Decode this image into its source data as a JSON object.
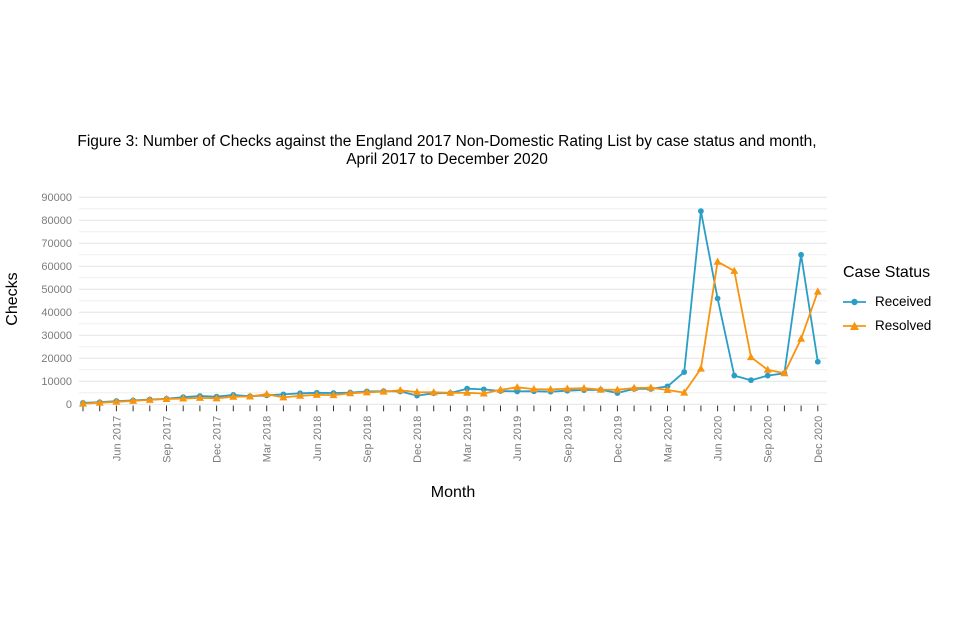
{
  "figure": {
    "title_line1": "Figure 3: Number of Checks against the England 2017 Non-Domestic Rating List by case status and month,",
    "title_line2": "April 2017 to December 2020"
  },
  "axes": {
    "x_label": "Month",
    "y_label": "Checks"
  },
  "legend": {
    "title": "Case Status",
    "items": [
      {
        "label": "Received",
        "marker": "circle",
        "color": "#2B9EC7"
      },
      {
        "label": "Resolved",
        "marker": "triangle",
        "color": "#F8940F"
      }
    ]
  },
  "colors": {
    "received": "#2B9EC7",
    "resolved": "#F8940F",
    "grid_major": "#e3e3e3",
    "grid_minor": "#efefef",
    "tick_text": "#7b7b7b",
    "tick_mark": "#333333"
  },
  "chart_data": {
    "type": "line",
    "title": "Figure 3: Number of Checks against the England 2017 Non-Domestic Rating List by case status and month, April 2017 to December 2020",
    "xlabel": "Month",
    "ylabel": "Checks",
    "ylim": [
      0,
      90000
    ],
    "ytick_step": 10000,
    "grid": true,
    "legend_position": "right",
    "x": [
      "Apr 2017",
      "May 2017",
      "Jun 2017",
      "Jul 2017",
      "Aug 2017",
      "Sep 2017",
      "Oct 2017",
      "Nov 2017",
      "Dec 2017",
      "Jan 2018",
      "Feb 2018",
      "Mar 2018",
      "Apr 2018",
      "May 2018",
      "Jun 2018",
      "Jul 2018",
      "Aug 2018",
      "Sep 2018",
      "Oct 2018",
      "Nov 2018",
      "Dec 2018",
      "Jan 2019",
      "Feb 2019",
      "Mar 2019",
      "Apr 2019",
      "May 2019",
      "Jun 2019",
      "Jul 2019",
      "Aug 2019",
      "Sep 2019",
      "Oct 2019",
      "Nov 2019",
      "Dec 2019",
      "Jan 2020",
      "Feb 2020",
      "Mar 2020",
      "Apr 2020",
      "May 2020",
      "Jun 2020",
      "Jul 2020",
      "Aug 2020",
      "Sep 2020",
      "Oct 2020",
      "Nov 2020",
      "Dec 2020"
    ],
    "x_labeled_ticks": [
      "Jun 2017",
      "Sep 2017",
      "Dec 2017",
      "Mar 2018",
      "Jun 2018",
      "Sep 2018",
      "Dec 2018",
      "Mar 2019",
      "Jun 2019",
      "Sep 2019",
      "Dec 2019",
      "Mar 2020",
      "Jun 2020",
      "Sep 2020",
      "Dec 2020"
    ],
    "series": [
      {
        "name": "Received",
        "color": "#2B9EC7",
        "marker": "circle",
        "values": [
          600,
          900,
          1400,
          1700,
          2100,
          2400,
          3100,
          3600,
          3300,
          4100,
          3500,
          3900,
          4300,
          4800,
          5000,
          4900,
          5100,
          5600,
          5700,
          5600,
          3800,
          4800,
          4900,
          6800,
          6500,
          5800,
          5600,
          5700,
          5500,
          5900,
          6200,
          6300,
          4900,
          6700,
          6700,
          7800,
          14000,
          84000,
          46000,
          12500,
          10500,
          12500,
          13500,
          65000,
          18500
        ]
      },
      {
        "name": "Resolved",
        "color": "#F8940F",
        "marker": "triangle",
        "values": [
          300,
          700,
          1100,
          1500,
          1900,
          2300,
          2500,
          2800,
          2600,
          3300,
          3400,
          4400,
          3000,
          3700,
          4100,
          4000,
          4800,
          5200,
          5500,
          6100,
          5300,
          5200,
          5000,
          5000,
          4700,
          6300,
          7400,
          6600,
          6500,
          6800,
          7000,
          6400,
          6300,
          7100,
          7200,
          6200,
          5100,
          15500,
          62000,
          58000,
          20500,
          15000,
          13500,
          28500,
          49000
        ]
      }
    ]
  }
}
